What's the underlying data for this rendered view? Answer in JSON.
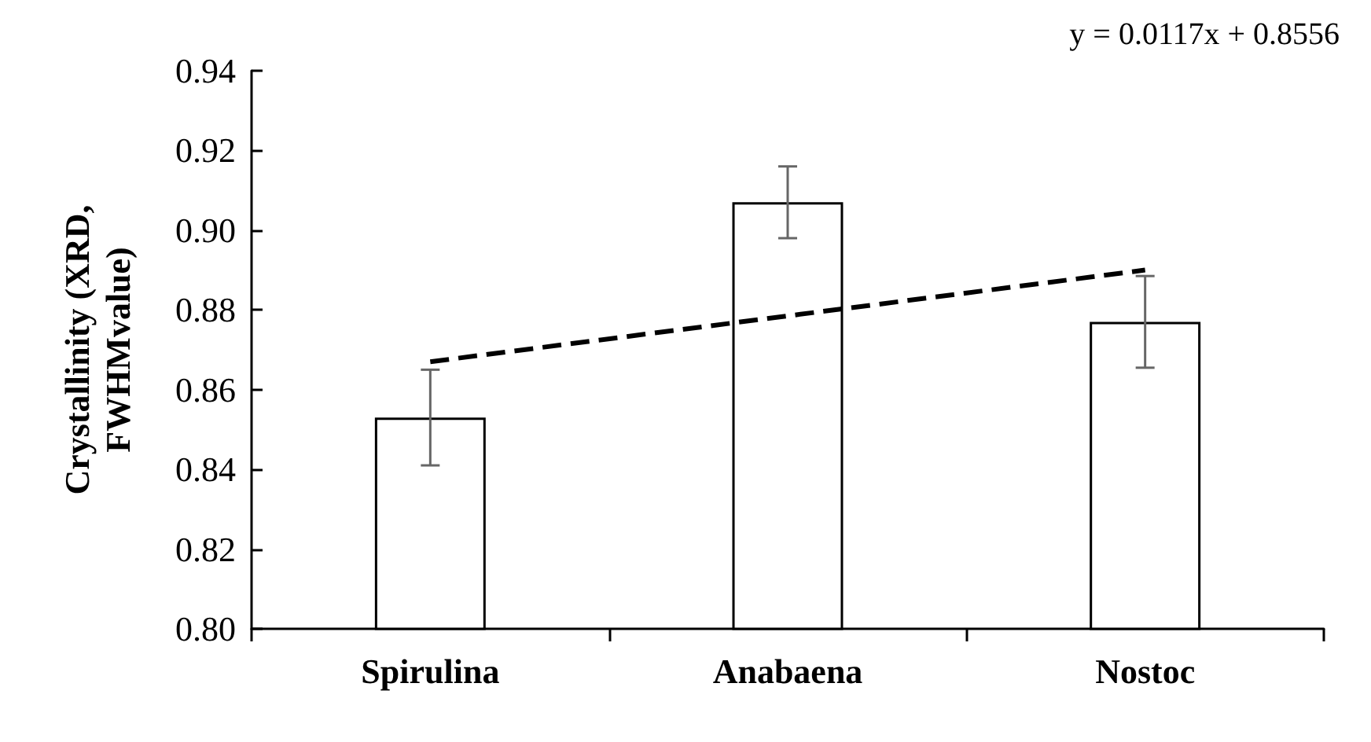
{
  "chart_data": {
    "type": "bar",
    "ylabel": "Crystallinity (XRD,\nFWHMvalue)",
    "categories": [
      "Spirulina",
      "Anabaena",
      "Nostoc"
    ],
    "series": [
      {
        "color": "#ffffff",
        "values": [
          0.853,
          0.907,
          0.877
        ],
        "errors": [
          0.012,
          0.009,
          0.0115
        ]
      },
      {
        "type": "line",
        "color": "#000000",
        "x": [
          "Spirulina",
          "Nostoc"
        ],
        "values": [
          0.867,
          0.89
        ],
        "line_style": "dashed",
        "marker": "none"
      }
    ],
    "ylim": [
      0.8,
      0.94
    ],
    "yticks": [
      {
        "value": 0.8,
        "label": "0.80"
      },
      {
        "value": 0.82,
        "label": "0.82"
      },
      {
        "value": 0.84,
        "label": "0.84"
      },
      {
        "value": 0.86,
        "label": "0.86"
      },
      {
        "value": 0.88,
        "label": "0.88"
      },
      {
        "value": 0.9,
        "label": "0.90"
      },
      {
        "value": 0.92,
        "label": "0.92"
      },
      {
        "value": 0.94,
        "label": "0.94"
      }
    ],
    "grid": false,
    "annotations": [
      "y = 0.0117x + 0.8556"
    ]
  }
}
